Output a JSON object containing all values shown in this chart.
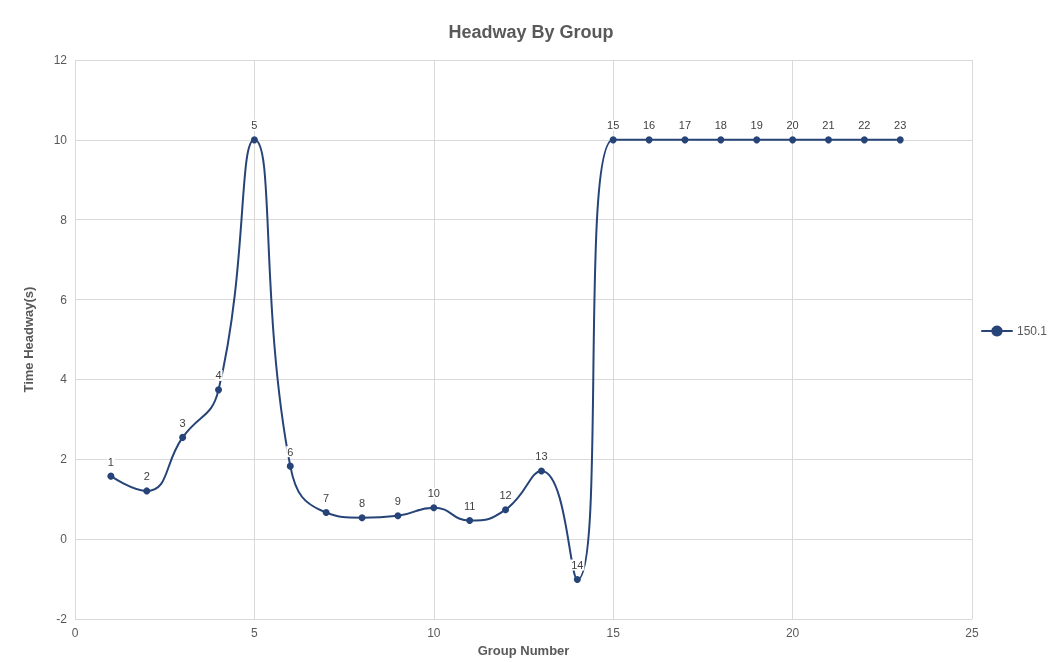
{
  "chart_data": {
    "type": "line",
    "title": "Headway By Group",
    "xlabel": "Group Number",
    "ylabel": "Time Headway(s)",
    "x": [
      1,
      2,
      3,
      4,
      5,
      6,
      7,
      8,
      9,
      10,
      11,
      12,
      13,
      14,
      15,
      16,
      17,
      18,
      19,
      20,
      21,
      22,
      23
    ],
    "series": [
      {
        "name": "150.1",
        "color": "#264478",
        "values": [
          1.58,
          1.21,
          2.55,
          3.74,
          10,
          1.83,
          0.67,
          0.54,
          0.59,
          0.79,
          0.47,
          0.74,
          1.71,
          -1.01,
          10,
          10,
          10,
          10,
          10,
          10,
          10,
          10,
          10
        ]
      }
    ],
    "annotations": [
      {
        "text": "1",
        "x": 1,
        "y": 1.58
      },
      {
        "text": "2",
        "x": 2,
        "y": 1.21
      },
      {
        "text": "3",
        "x": 3,
        "y": 2.55
      },
      {
        "text": "4",
        "x": 4,
        "y": 3.74
      },
      {
        "text": "5",
        "x": 5,
        "y": 10
      },
      {
        "text": "6",
        "x": 6,
        "y": 1.83
      },
      {
        "text": "7",
        "x": 7,
        "y": 0.67
      },
      {
        "text": "8",
        "x": 8,
        "y": 0.54
      },
      {
        "text": "9",
        "x": 9,
        "y": 0.59
      },
      {
        "text": "10",
        "x": 10,
        "y": 0.79
      },
      {
        "text": "11",
        "x": 11,
        "y": 0.47
      },
      {
        "text": "12",
        "x": 12,
        "y": 0.74
      },
      {
        "text": "13",
        "x": 13,
        "y": 1.71
      },
      {
        "text": "14",
        "x": 14,
        "y": -1.01
      },
      {
        "text": "15",
        "x": 15,
        "y": 10
      },
      {
        "text": "16",
        "x": 16,
        "y": 10
      },
      {
        "text": "17",
        "x": 17,
        "y": 10
      },
      {
        "text": "18",
        "x": 18,
        "y": 10
      },
      {
        "text": "19",
        "x": 19,
        "y": 10
      },
      {
        "text": "20",
        "x": 20,
        "y": 10
      },
      {
        "text": "21",
        "x": 21,
        "y": 10
      },
      {
        "text": "22",
        "x": 22,
        "y": 10
      },
      {
        "text": "23",
        "x": 23,
        "y": 10
      }
    ],
    "xlim": [
      0,
      25
    ],
    "xticks": [
      0,
      5,
      10,
      15,
      20,
      25
    ],
    "ylim": [
      -2,
      12
    ],
    "yticks": [
      -2,
      0,
      2,
      4,
      6,
      8,
      10,
      12
    ],
    "grid": true,
    "legend": "right",
    "marker": "circle",
    "line_style": "solid"
  }
}
